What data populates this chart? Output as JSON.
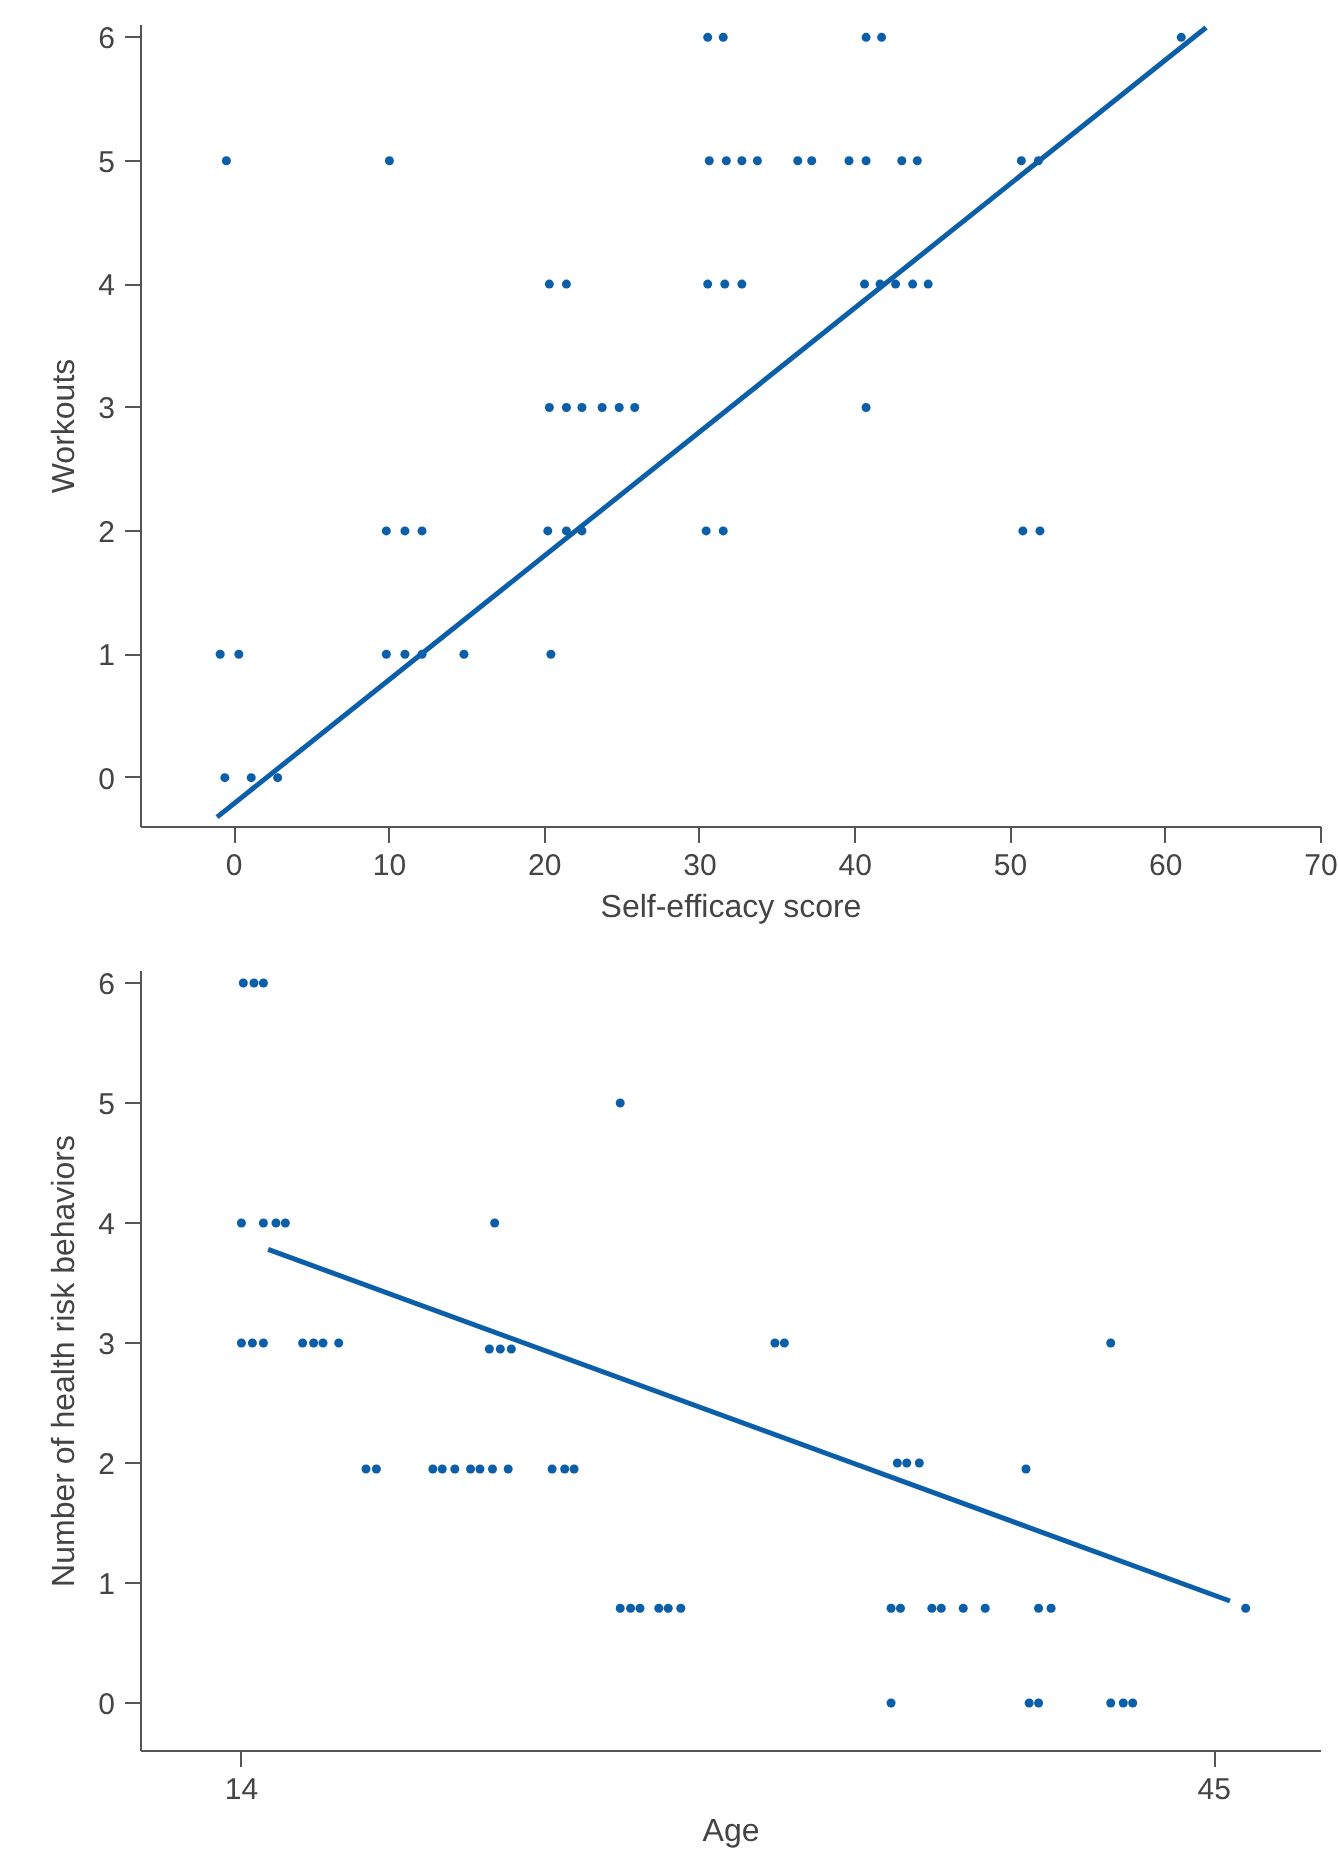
{
  "chart_data": [
    {
      "type": "scatter",
      "xlabel": "Self-efficacy score",
      "ylabel": "Workouts",
      "xlim": [
        -6,
        70
      ],
      "ylim": [
        -0.4,
        6.1
      ],
      "xticks": [
        0,
        10,
        20,
        30,
        40,
        50,
        60,
        70
      ],
      "yticks": [
        0,
        1,
        2,
        3,
        4,
        5,
        6
      ],
      "grid": false,
      "series": [
        {
          "color": "#0b5ea8",
          "marker": "circle",
          "x": [
            30.5,
            31.5,
            40.7,
            41.7,
            61,
            -0.5,
            10,
            30.6,
            31.7,
            32.7,
            33.7,
            36.3,
            37.2,
            39.6,
            40.7,
            43,
            44,
            50.7,
            51.8,
            20.3,
            21.4,
            30.5,
            31.6,
            32.7,
            40.6,
            41.6,
            42.6,
            43.7,
            44.7,
            20.3,
            21.4,
            22.4,
            23.7,
            24.8,
            25.8,
            40.7,
            9.8,
            11,
            12.1,
            20.2,
            21.4,
            22.4,
            30.4,
            31.5,
            50.8,
            51.9,
            -0.9,
            0.3,
            9.8,
            11,
            12.1,
            14.8,
            20.4,
            -0.6,
            1.1,
            2.8
          ],
          "values": [
            6,
            6,
            6,
            6,
            6,
            5,
            5,
            5,
            5,
            5,
            5,
            5,
            5,
            5,
            5,
            5,
            5,
            5,
            5,
            4,
            4,
            4,
            4,
            4,
            4,
            4,
            4,
            4,
            4,
            3,
            3,
            3,
            3,
            3,
            3,
            3,
            2,
            2,
            2,
            2,
            2,
            2,
            2,
            2,
            2,
            2,
            1,
            1,
            1,
            1,
            1,
            1,
            1,
            0,
            0,
            0
          ]
        },
        {
          "type": "line",
          "marker": "none",
          "color": "#0b5ea8",
          "x": [
            -1.1,
            62.6
          ],
          "values": [
            -0.32,
            6.08
          ]
        }
      ]
    },
    {
      "type": "scatter",
      "xlabel": "Age",
      "ylabel": "Number of health risk behaviors",
      "xlim": [
        10.8,
        48.4
      ],
      "ylim": [
        -0.4,
        6.1
      ],
      "xticks": [
        14,
        45
      ],
      "yticks": [
        0,
        1,
        2,
        3,
        4,
        5,
        6
      ],
      "grid": false,
      "series": [
        {
          "color": "#0b5ea8",
          "marker": "circle",
          "x": [
            14.06,
            14.4,
            14.7,
            26.07,
            14.0,
            14.7,
            15.1,
            15.4,
            22.07,
            14.0,
            14.35,
            14.7,
            15.95,
            16.3,
            16.6,
            17.1,
            21.9,
            22.25,
            22.6,
            31.0,
            31.3,
            41.7,
            17.97,
            18.3,
            20.1,
            20.4,
            20.8,
            21.3,
            21.6,
            22.0,
            22.5,
            23.9,
            24.3,
            24.6,
            34.9,
            35.2,
            35.6,
            39.0,
            26.07,
            26.4,
            26.7,
            27.3,
            27.6,
            28.0,
            34.7,
            35.0,
            36.0,
            36.3,
            37.0,
            37.7,
            39.4,
            39.8,
            46.0,
            34.7,
            39.1,
            39.4,
            41.7,
            42.1,
            42.4
          ],
          "values": [
            6,
            6,
            6,
            5,
            4,
            4,
            4,
            4,
            4,
            3,
            3,
            3,
            3,
            3,
            3,
            3,
            2.95,
            2.95,
            2.95,
            3,
            3,
            3,
            1.95,
            1.95,
            1.95,
            1.95,
            1.95,
            1.95,
            1.95,
            1.95,
            1.95,
            1.95,
            1.95,
            1.95,
            2,
            2,
            2,
            1.95,
            0.79,
            0.79,
            0.79,
            0.79,
            0.79,
            0.79,
            0.79,
            0.79,
            0.79,
            0.79,
            0.79,
            0.79,
            0.79,
            0.79,
            0.79,
            0,
            0,
            0,
            0,
            0,
            0
          ]
        },
        {
          "type": "line",
          "marker": "none",
          "color": "#0b5ea8",
          "x": [
            14.85,
            45.5
          ],
          "values": [
            3.78,
            0.85
          ]
        }
      ]
    }
  ]
}
